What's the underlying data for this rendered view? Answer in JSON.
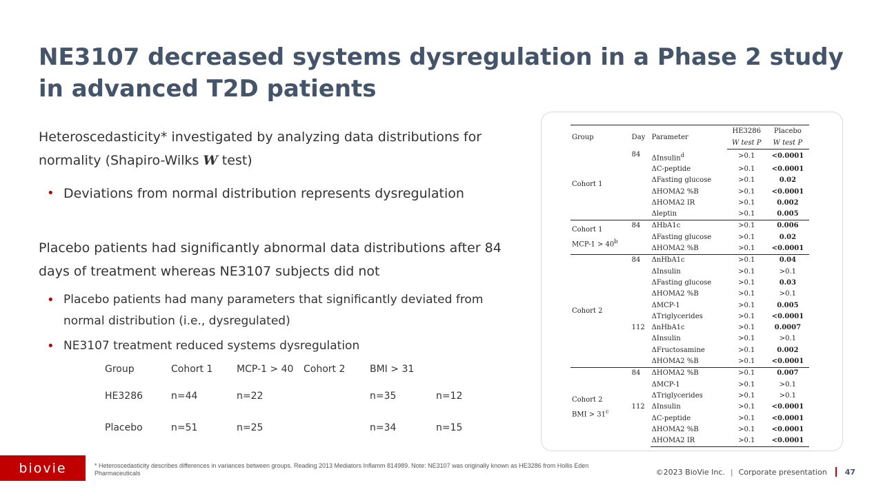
{
  "slide": {
    "title": "NE3107 decreased systems dysregulation in a Phase 2 study in advanced T2D patients",
    "para1_pre": "Heteroscedasticity* investigated by analyzing data distributions for normality (Shapiro-Wilks ",
    "para1_var": "W",
    "para1_post": " test)",
    "bullet1": "Deviations from normal distribution represents dysregulation",
    "para2": "Placebo patients had significantly abnormal data distributions after 84 days of treatment whereas NE3107 subjects did not",
    "bullet2": "Placebo patients had many parameters that significantly deviated from normal distribution (i.e., dysregulated)",
    "bullet3": "NE3107 treatment reduced systems dysregulation"
  },
  "n_table": {
    "header": [
      "Group",
      "Cohort 1",
      "MCP-1 > 40",
      "Cohort 2",
      "BMI > 31",
      ""
    ],
    "rows": [
      [
        "HE3286",
        "n=44",
        "n=22",
        "",
        "n=35",
        "n=12"
      ],
      [
        "Placebo",
        "n=51",
        "n=25",
        "",
        "n=34",
        "n=15"
      ]
    ]
  },
  "stats_table": {
    "headers": {
      "group": "Group",
      "day": "Day",
      "parameter": "Parameter",
      "he_line1": "HE3286",
      "he_line2": "W test P",
      "pl_line1": "Placebo",
      "pl_line2": "W test P"
    },
    "sections": [
      {
        "group": "Cohort 1",
        "group_sup": "",
        "rows": [
          {
            "day": "84",
            "param": "ΔInsulin",
            "sup": "d",
            "he": ">0.1",
            "pl": "<0.0001",
            "bold": true
          },
          {
            "day": "",
            "param": "ΔC-peptide",
            "sup": "",
            "he": ">0.1",
            "pl": "<0.0001",
            "bold": true
          },
          {
            "day": "",
            "param": "ΔFasting glucose",
            "sup": "",
            "he": ">0.1",
            "pl": "0.02",
            "bold": true
          },
          {
            "day": "",
            "param": "ΔHOMA2 %B",
            "sup": "",
            "he": ">0.1",
            "pl": "<0.0001",
            "bold": true
          },
          {
            "day": "",
            "param": "ΔHOMA2 IR",
            "sup": "",
            "he": ">0.1",
            "pl": "0.002",
            "bold": true
          },
          {
            "day": "",
            "param": "Δleptin",
            "sup": "",
            "he": ">0.1",
            "pl": "0.005",
            "bold": true
          }
        ]
      },
      {
        "group": "Cohort 1",
        "group2": "MCP-1 > 40",
        "group_sup": "b",
        "rows": [
          {
            "day": "84",
            "param": "ΔHbA1c",
            "sup": "",
            "he": ">0.1",
            "pl": "0.006",
            "bold": true
          },
          {
            "day": "",
            "param": "ΔFasting glucose",
            "sup": "",
            "he": ">0.1",
            "pl": "0.02",
            "bold": true
          },
          {
            "day": "",
            "param": "ΔHOMA2 %B",
            "sup": "",
            "he": ">0.1",
            "pl": "<0.0001",
            "bold": true
          }
        ]
      },
      {
        "group": "Cohort 2",
        "group_sup": "",
        "rows": [
          {
            "day": "84",
            "param": "ΔnHbA1c",
            "sup": "",
            "he": ">0.1",
            "pl": "0.04",
            "bold": true
          },
          {
            "day": "",
            "param": "ΔInsulin",
            "sup": "",
            "he": ">0.1",
            "pl": ">0.1",
            "bold": false
          },
          {
            "day": "",
            "param": "ΔFasting glucose",
            "sup": "",
            "he": ">0.1",
            "pl": "0.03",
            "bold": true
          },
          {
            "day": "",
            "param": "ΔHOMA2 %B",
            "sup": "",
            "he": ">0.1",
            "pl": ">0.1",
            "bold": false
          },
          {
            "day": "",
            "param": "ΔMCP-1",
            "sup": "",
            "he": ">0.1",
            "pl": "0.005",
            "bold": true
          },
          {
            "day": "",
            "param": "ΔTriglycerides",
            "sup": "",
            "he": ">0.1",
            "pl": "<0.0001",
            "bold": true
          },
          {
            "day": "112",
            "param": "ΔnHbA1c",
            "sup": "",
            "he": ">0.1",
            "pl": "0.0007",
            "bold": true
          },
          {
            "day": "",
            "param": "ΔInsulin",
            "sup": "",
            "he": ">0.1",
            "pl": ">0.1",
            "bold": false
          },
          {
            "day": "",
            "param": "ΔFructosamine",
            "sup": "",
            "he": ">0.1",
            "pl": "0.002",
            "bold": true
          },
          {
            "day": "",
            "param": "ΔHOMA2 %B",
            "sup": "",
            "he": ">0.1",
            "pl": "<0.0001",
            "bold": true
          }
        ]
      },
      {
        "group": "Cohort 2",
        "group2": "BMI > 31",
        "group_sup": "c",
        "rows": [
          {
            "day": "84",
            "param": "ΔHOMA2 %B",
            "sup": "",
            "he": ">0.1",
            "pl": "0.007",
            "bold": true
          },
          {
            "day": "",
            "param": "ΔMCP-1",
            "sup": "",
            "he": ">0.1",
            "pl": ">0.1",
            "bold": false
          },
          {
            "day": "",
            "param": "ΔTriglycerides",
            "sup": "",
            "he": ">0.1",
            "pl": ">0.1",
            "bold": false
          },
          {
            "day": "112",
            "param": "ΔInsulin",
            "sup": "",
            "he": ">0.1",
            "pl": "<0.0001",
            "bold": true
          },
          {
            "day": "",
            "param": "ΔC-peptide",
            "sup": "",
            "he": ">0.1",
            "pl": "<0.0001",
            "bold": true
          },
          {
            "day": "",
            "param": "ΔHOMA2 %B",
            "sup": "",
            "he": ">0.1",
            "pl": "<0.0001",
            "bold": true
          },
          {
            "day": "",
            "param": "ΔHOMA2 IR",
            "sup": "",
            "he": ">0.1",
            "pl": "<0.0001",
            "bold": true
          }
        ]
      }
    ]
  },
  "footer": {
    "logo": "biovie",
    "footnote": "* Heteroscedasticity describes differences in variances between groups. Reading 2013 Mediators Inflamm 814989. Note: NE3107 was originally known as HE3286 from Hollis Eden Pharmaceuticals",
    "copyright": "©2023 BioVie Inc.",
    "separator": "|",
    "label": "Corporate presentation",
    "page": "47"
  },
  "colors": {
    "title": "#44546a",
    "accent": "#c00000",
    "text": "#333333"
  }
}
